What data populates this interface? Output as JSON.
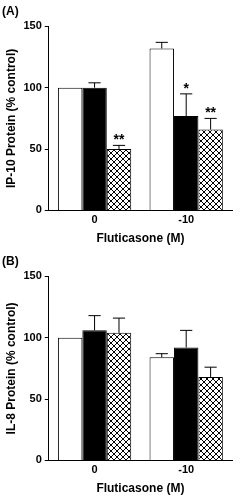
{
  "chart_data": [
    {
      "type": "bar",
      "title": "(A)",
      "categories": [
        "0",
        "-10"
      ],
      "x_label": "Fluticasone (M)",
      "y_label": "IP-10 Protein (% control)",
      "series": [
        {
          "color": "#ffffff",
          "values": [
            100,
            132
          ],
          "errors": [
            0,
            5
          ]
        },
        {
          "color": "#000000",
          "values": [
            100,
            77
          ],
          "errors": [
            4,
            18
          ]
        },
        {
          "color": "#000000",
          "values": [
            50,
            66
          ],
          "errors": [
            3,
            9
          ]
        }
      ],
      "annotations": [
        {
          "series": 1,
          "category": "-10",
          "text": "*"
        },
        {
          "series": 2,
          "category": "0",
          "text": "**"
        },
        {
          "series": 2,
          "category": "-10",
          "text": "**"
        }
      ],
      "ylim": [
        0,
        150
      ],
      "yticks": [
        0,
        50,
        100,
        150
      ],
      "grid": false
    },
    {
      "type": "bar",
      "title": "(B)",
      "categories": [
        "0",
        "-10"
      ],
      "x_label": "Fluticasone (M)",
      "y_label": "IL-8 Protein (% control)",
      "series": [
        {
          "color": "#ffffff",
          "values": [
            100,
            84
          ],
          "errors": [
            0,
            3
          ]
        },
        {
          "color": "#000000",
          "values": [
            106,
            92
          ],
          "errors": [
            12,
            14
          ]
        },
        {
          "color": "#000000",
          "values": [
            104,
            68
          ],
          "errors": [
            12,
            8
          ]
        }
      ],
      "ylim": [
        0,
        150
      ],
      "yticks": [
        0,
        50,
        100,
        150
      ],
      "grid": false
    }
  ]
}
